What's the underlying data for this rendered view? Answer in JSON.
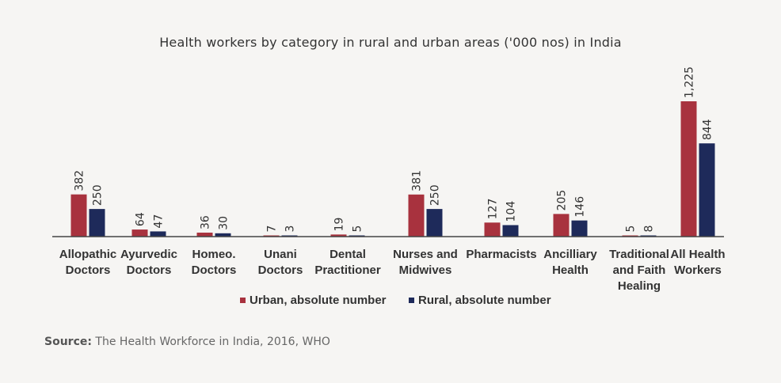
{
  "chart_data": {
    "type": "bar",
    "title": "Health workers by category in rural and urban areas ('000 nos) in India",
    "categories": [
      [
        "Allopathic",
        "Doctors"
      ],
      [
        "Ayurvedic",
        "Doctors"
      ],
      [
        "Homeo.",
        "Doctors"
      ],
      [
        "Unani",
        "Doctors"
      ],
      [
        "Dental",
        "Practitioner"
      ],
      [
        "Nurses and",
        "Midwives"
      ],
      [
        "Pharmacists"
      ],
      [
        "Ancilliary",
        "Health"
      ],
      [
        "Traditional",
        "and Faith",
        "Healing"
      ],
      [
        "All Health",
        "Workers"
      ]
    ],
    "series": [
      {
        "name": "Urban, absolute number",
        "color": "#a8323e",
        "values": [
          382,
          64,
          36,
          7,
          19,
          381,
          127,
          205,
          5,
          1225
        ],
        "labels": [
          "382",
          "64",
          "36",
          "7",
          "19",
          "381",
          "127",
          "205",
          "5",
          "1,225"
        ]
      },
      {
        "name": "Rural, absolute number",
        "color": "#1e2a5a",
        "values": [
          250,
          47,
          30,
          3,
          5,
          250,
          104,
          146,
          8,
          844
        ],
        "labels": [
          "250",
          "47",
          "30",
          "3",
          "5",
          "250",
          "104",
          "146",
          "8",
          "844"
        ]
      }
    ],
    "ylim": [
      0,
      1225
    ],
    "legend": "bottom-center",
    "grid": false
  },
  "source": {
    "label": "Source:",
    "text": "The Health Workforce in India, 2016, WHO"
  }
}
